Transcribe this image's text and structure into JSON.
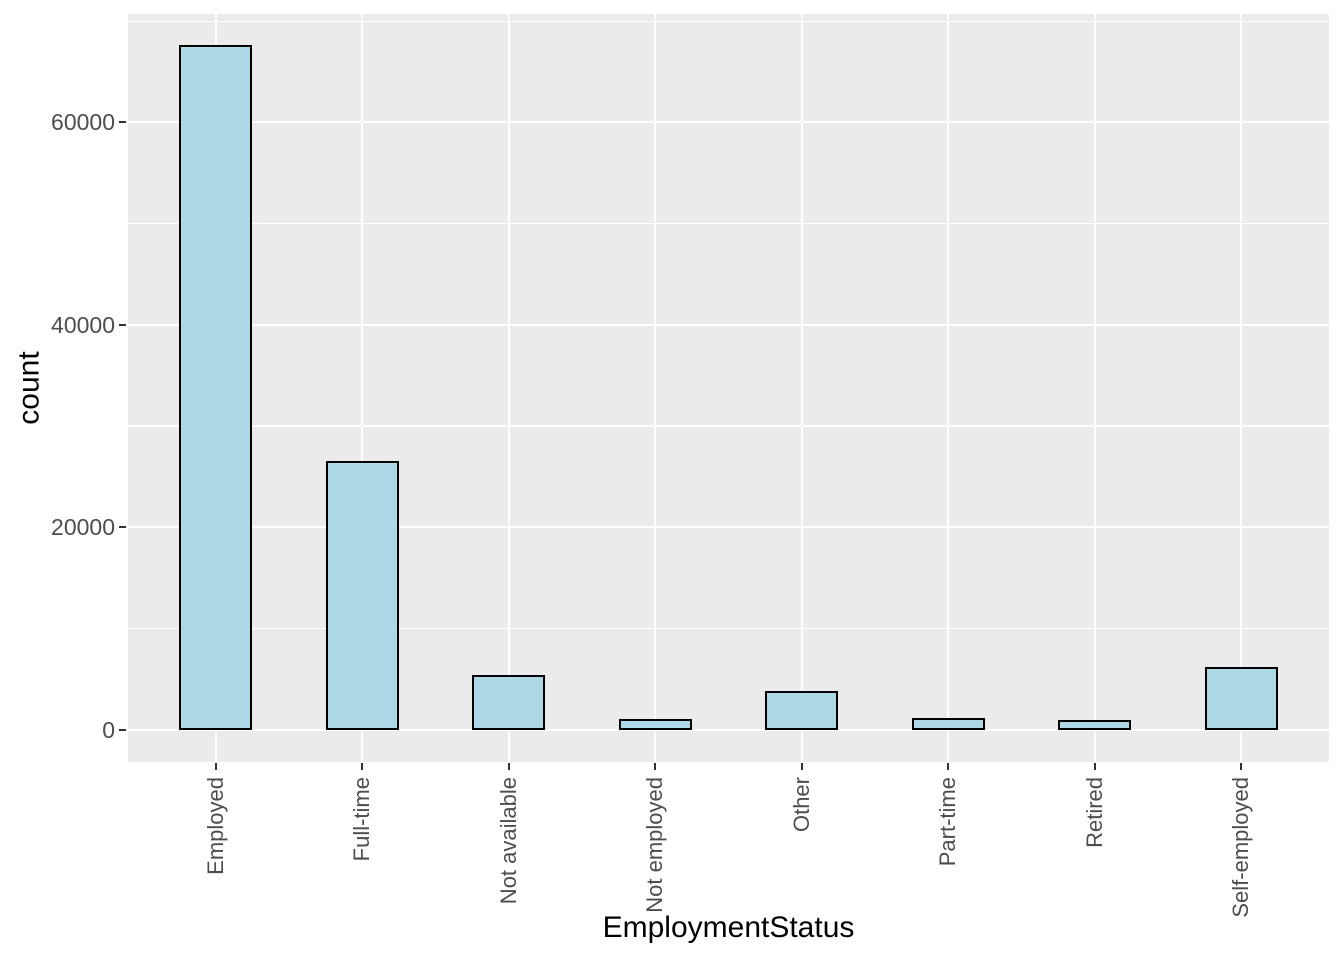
{
  "chart_data": {
    "type": "bar",
    "title": "",
    "xlabel": "EmploymentStatus",
    "ylabel": "count",
    "categories": [
      "Employed",
      "Full-time",
      "Not available",
      "Not employed",
      "Other",
      "Part-time",
      "Retired",
      "Self-employed"
    ],
    "values": [
      67600,
      26400,
      5300,
      900,
      3700,
      1050,
      850,
      6100
    ],
    "ylim": [
      0,
      70700
    ],
    "yticks_major": [
      0,
      20000,
      40000,
      60000
    ],
    "yticks_minor": [
      10000,
      30000,
      50000,
      70000
    ],
    "grid": "white major and minor horizontal gridlines plus vertical gridline at each category center, on grey panel",
    "legend": "none",
    "bar_width_fraction": 0.5,
    "colors": {
      "bar_fill": "#ADD8E6",
      "bar_stroke": "#000000",
      "panel_bg": "#EBEBEB",
      "grid": "#FFFFFF",
      "tick_label": "#4D4D4D",
      "tick_mark": "#333333",
      "axis_title": "#000000",
      "figure_bg": "#FFFFFF"
    }
  }
}
